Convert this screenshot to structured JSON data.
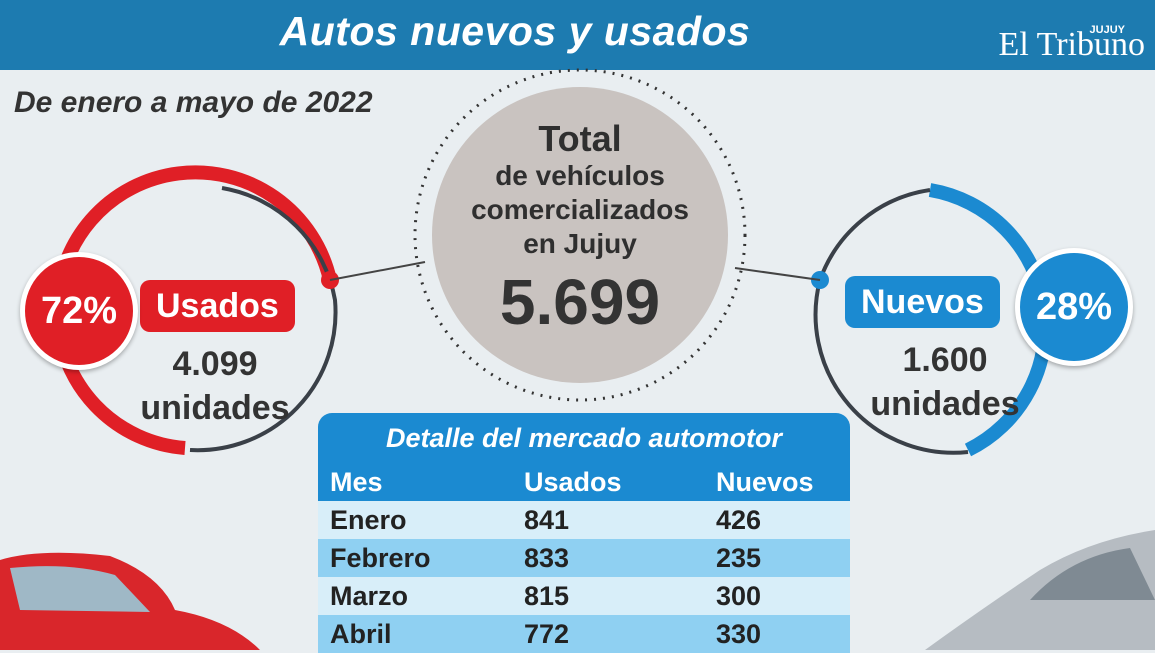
{
  "header": {
    "title": "Autos nuevos y usados",
    "brand_tag": "JUJUY",
    "brand_name": "El Tribuno"
  },
  "subtitle": "De enero a mayo de 2022",
  "total": {
    "line1": "Total",
    "line2": "de vehículos",
    "line3": "comercializados",
    "line4": "en Jujuy",
    "value": "5.699"
  },
  "usados": {
    "label": "Usados",
    "pct": "72%",
    "units_value": "4.099",
    "units_label": "unidades"
  },
  "nuevos": {
    "label": "Nuevos",
    "pct": "28%",
    "units_value": "1.600",
    "units_label": "unidades"
  },
  "colors": {
    "red": "#e01f26",
    "blue": "#1b8ad1",
    "header": "#1d7bb0"
  },
  "chart_data": {
    "type": "table",
    "title": "Detalle del mercado automotor",
    "columns": [
      "Mes",
      "Usados",
      "Nuevos"
    ],
    "rows": [
      [
        "Enero",
        "841",
        "426"
      ],
      [
        "Febrero",
        "833",
        "235"
      ],
      [
        "Marzo",
        "815",
        "300"
      ],
      [
        "Abril",
        "772",
        "330"
      ]
    ],
    "share": {
      "usados_pct": 72,
      "nuevos_pct": 28
    }
  }
}
